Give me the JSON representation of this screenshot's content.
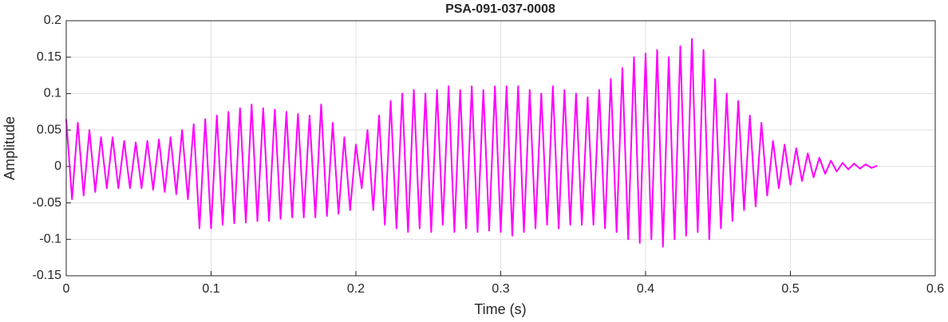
{
  "chart_data": {
    "type": "line",
    "title": "PSA-091-037-0008",
    "xlabel": "Time (s)",
    "ylabel": "Amplitude",
    "x": [
      0.0,
      0.004,
      0.008,
      0.012,
      0.016,
      0.02,
      0.024,
      0.028,
      0.032,
      0.036,
      0.04,
      0.044,
      0.048,
      0.052,
      0.056,
      0.06,
      0.064,
      0.068,
      0.072,
      0.076,
      0.08,
      0.084,
      0.088,
      0.092,
      0.096,
      0.1,
      0.104,
      0.108,
      0.112,
      0.116,
      0.12,
      0.124,
      0.128,
      0.132,
      0.136,
      0.14,
      0.144,
      0.148,
      0.152,
      0.156,
      0.16,
      0.164,
      0.168,
      0.172,
      0.176,
      0.18,
      0.184,
      0.188,
      0.192,
      0.196,
      0.2,
      0.204,
      0.208,
      0.212,
      0.216,
      0.22,
      0.224,
      0.228,
      0.232,
      0.236,
      0.24,
      0.244,
      0.248,
      0.252,
      0.256,
      0.26,
      0.264,
      0.268,
      0.272,
      0.276,
      0.28,
      0.284,
      0.288,
      0.292,
      0.296,
      0.3,
      0.304,
      0.308,
      0.312,
      0.316,
      0.32,
      0.324,
      0.328,
      0.332,
      0.336,
      0.34,
      0.344,
      0.348,
      0.352,
      0.356,
      0.36,
      0.364,
      0.368,
      0.372,
      0.376,
      0.38,
      0.384,
      0.388,
      0.392,
      0.396,
      0.4,
      0.404,
      0.408,
      0.412,
      0.416,
      0.42,
      0.424,
      0.428,
      0.432,
      0.436,
      0.44,
      0.444,
      0.448,
      0.452,
      0.456,
      0.46,
      0.464,
      0.468,
      0.472,
      0.476,
      0.48,
      0.484,
      0.488,
      0.492,
      0.496,
      0.5,
      0.504,
      0.508,
      0.512,
      0.516,
      0.52,
      0.524,
      0.528,
      0.532,
      0.536,
      0.54,
      0.544,
      0.548,
      0.552,
      0.556,
      0.56
    ],
    "values": [
      0.065,
      -0.045,
      0.06,
      -0.04,
      0.05,
      -0.035,
      0.04,
      -0.03,
      0.04,
      -0.03,
      0.035,
      -0.03,
      0.033,
      -0.03,
      0.035,
      -0.032,
      0.037,
      -0.035,
      0.04,
      -0.038,
      0.05,
      -0.045,
      0.058,
      -0.085,
      0.065,
      -0.085,
      0.07,
      -0.08,
      0.075,
      -0.078,
      0.08,
      -0.077,
      0.085,
      -0.075,
      0.08,
      -0.075,
      0.078,
      -0.072,
      0.075,
      -0.07,
      0.072,
      -0.07,
      0.07,
      -0.07,
      0.085,
      -0.068,
      0.06,
      -0.065,
      0.04,
      -0.06,
      0.03,
      -0.03,
      0.05,
      -0.06,
      0.07,
      -0.08,
      0.09,
      -0.085,
      0.1,
      -0.09,
      0.105,
      -0.085,
      0.1,
      -0.09,
      0.105,
      -0.08,
      0.11,
      -0.09,
      0.105,
      -0.085,
      0.11,
      -0.09,
      0.105,
      -0.088,
      0.11,
      -0.09,
      0.11,
      -0.095,
      0.11,
      -0.09,
      0.105,
      -0.085,
      0.1,
      -0.08,
      0.11,
      -0.085,
      0.105,
      -0.08,
      0.1,
      -0.08,
      0.095,
      -0.08,
      0.105,
      -0.085,
      0.12,
      -0.09,
      0.135,
      -0.1,
      0.15,
      -0.105,
      0.155,
      -0.1,
      0.16,
      -0.11,
      0.15,
      -0.1,
      0.165,
      -0.095,
      0.175,
      -0.09,
      0.16,
      -0.1,
      0.12,
      -0.085,
      0.1,
      -0.075,
      0.09,
      -0.06,
      0.07,
      -0.055,
      0.06,
      -0.04,
      0.035,
      -0.03,
      0.03,
      -0.025,
      0.025,
      -0.02,
      0.018,
      -0.015,
      0.012,
      -0.01,
      0.008,
      -0.007,
      0.005,
      -0.004,
      0.004,
      -0.003,
      0.003,
      -0.002,
      0.001
    ],
    "color": "#ff00ff",
    "xlim": [
      0,
      0.6
    ],
    "xticks": [
      0,
      0.1,
      0.2,
      0.3,
      0.4,
      0.5,
      0.6
    ],
    "ylim": [
      -0.15,
      0.2
    ],
    "yticks": [
      -0.15,
      -0.1,
      -0.05,
      0,
      0.05,
      0.1,
      0.15,
      0.2
    ],
    "grid": true
  }
}
